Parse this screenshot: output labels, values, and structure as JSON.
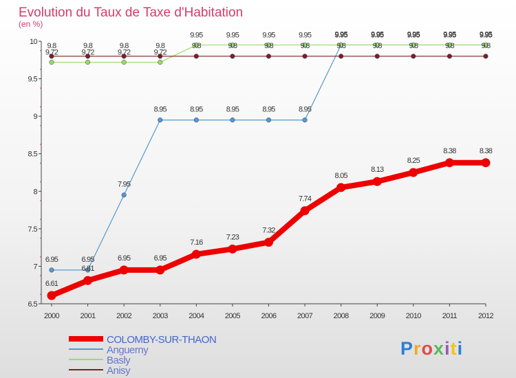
{
  "chart_data": {
    "type": "line",
    "title": "Evolution du Taux de Taxe d'Habitation",
    "subtitle": "(en %)",
    "xlabel": "",
    "ylabel": "",
    "x": [
      "2000",
      "2001",
      "2002",
      "2003",
      "2004",
      "2005",
      "2006",
      "2007",
      "2008",
      "2009",
      "2010",
      "2011",
      "2012"
    ],
    "ylim": [
      6.5,
      10
    ],
    "yticks": [
      "6.5",
      "7",
      "7.5",
      "8",
      "8.5",
      "9",
      "9.5",
      "10"
    ],
    "grid": false,
    "legend_position": "bottom-left",
    "series": [
      {
        "name": "COLOMBY-SUR-THAON",
        "color": "#ee0000",
        "values": [
          6.61,
          6.81,
          6.95,
          6.95,
          7.16,
          7.23,
          7.32,
          7.74,
          8.05,
          8.13,
          8.25,
          8.38,
          8.38
        ],
        "labels": [
          "6.61",
          "6.81",
          "6.95",
          "6.95",
          "7.16",
          "7.23",
          "7.32",
          "7.74",
          "8.05",
          "8.13",
          "8.25",
          "8.38",
          "8.38"
        ]
      },
      {
        "name": "Anguerny",
        "color": "#5599cc",
        "values": [
          6.95,
          6.95,
          7.95,
          8.95,
          8.95,
          8.95,
          8.95,
          8.95,
          9.95,
          9.95,
          9.95,
          9.95,
          9.95
        ],
        "labels": [
          "6.95",
          "6.95",
          "7.95",
          "8.95",
          "8.95",
          "8.95",
          "8.95",
          "8.95",
          "9.95",
          "9.95",
          "9.95",
          "9.95",
          "9.95"
        ]
      },
      {
        "name": "Basly",
        "color": "#99dd66",
        "values": [
          9.72,
          9.72,
          9.72,
          9.72,
          9.95,
          9.95,
          9.95,
          9.95,
          9.95,
          9.95,
          9.95,
          9.95,
          9.95
        ],
        "labels": [
          "9.72",
          "9.72",
          "9.72",
          "9.72",
          "9.95",
          "9.95",
          "9.95",
          "9.95",
          "9.95",
          "9.95",
          "9.95",
          "9.95",
          "9.95"
        ]
      },
      {
        "name": "Anisy",
        "color": "#772222",
        "values": [
          9.8,
          9.8,
          9.8,
          9.8,
          9.8,
          9.8,
          9.8,
          9.8,
          9.8,
          9.8,
          9.8,
          9.8,
          9.8
        ],
        "labels": [
          "9.8",
          "9.8",
          "9.8",
          "9.8",
          "9.8",
          "9.8",
          "9.8",
          "9.8",
          "9.8",
          "9.8",
          "9.8",
          "9.8",
          "9.8"
        ]
      }
    ]
  },
  "logo": {
    "text": "Proxiti",
    "letter_colors": [
      "#2b7fd6",
      "#f5a623",
      "#e24a4a",
      "#5cb85c",
      "#9b59b6",
      "#f0c419",
      "#2b7fd6"
    ]
  }
}
